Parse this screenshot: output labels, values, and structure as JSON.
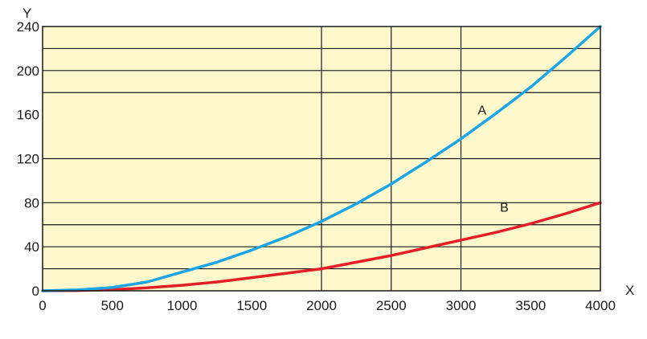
{
  "chart_data": {
    "type": "line",
    "title": "",
    "xlabel": "X",
    "ylabel": "Y",
    "xlim": [
      0,
      4000
    ],
    "ylim": [
      0,
      240
    ],
    "x_ticks": [
      0,
      500,
      1000,
      1500,
      2000,
      2500,
      3000,
      3500,
      4000
    ],
    "y_ticks": [
      0,
      40,
      80,
      120,
      160,
      200,
      240
    ],
    "x_gridlines": [
      2000,
      2500,
      3000
    ],
    "y_gridlines": [
      20,
      40,
      60,
      80,
      120,
      180,
      200,
      220
    ],
    "grid": true,
    "background_color": "#fef9cc",
    "x": [
      0,
      250,
      500,
      750,
      1000,
      1250,
      1500,
      1750,
      2000,
      2250,
      2500,
      2750,
      3000,
      3250,
      3500,
      3750,
      4000
    ],
    "series": [
      {
        "name": "A",
        "color": "#1ba5e6",
        "values": [
          0,
          0.8,
          3,
          8,
          17,
          26,
          37,
          49,
          63,
          79,
          97,
          117,
          138,
          161,
          185,
          212,
          240
        ]
      },
      {
        "name": "B",
        "color": "#e61e28",
        "values": [
          0,
          0.3,
          1,
          2.8,
          5,
          8,
          12,
          16,
          20,
          26,
          32,
          39,
          46,
          53,
          61,
          70,
          80
        ]
      }
    ],
    "annotations": [
      {
        "text": "A",
        "x": 3120,
        "y": 160
      },
      {
        "text": "B",
        "x": 3280,
        "y": 72
      }
    ]
  }
}
